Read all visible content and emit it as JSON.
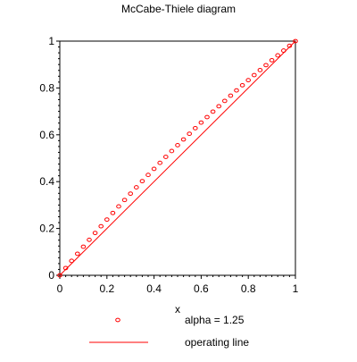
{
  "chart_data": {
    "type": "scatter",
    "title": "McCabe-Thiele diagram",
    "xlabel": "x",
    "ylabel": "",
    "xlim": [
      0,
      1
    ],
    "ylim": [
      0,
      1
    ],
    "grid": false,
    "legend_position": "bottom",
    "x_ticks": [
      "0",
      "0.2",
      "0.4",
      "0.6",
      "0.8",
      "1"
    ],
    "y_ticks": [
      "0",
      "0.2",
      "0.4",
      "0.6",
      "0.8",
      "1"
    ],
    "series": [
      {
        "name": "alpha = 1.25",
        "style": "circles",
        "color": "#ff0000",
        "alpha": 1.25,
        "x": [
          0,
          0.025,
          0.05,
          0.075,
          0.1,
          0.125,
          0.15,
          0.175,
          0.2,
          0.225,
          0.25,
          0.275,
          0.3,
          0.325,
          0.35,
          0.375,
          0.4,
          0.425,
          0.45,
          0.475,
          0.5,
          0.525,
          0.55,
          0.575,
          0.6,
          0.625,
          0.65,
          0.675,
          0.7,
          0.725,
          0.75,
          0.775,
          0.8,
          0.825,
          0.85,
          0.875,
          0.9,
          0.925,
          0.95,
          0.975,
          1
        ],
        "y": [
          0,
          0.0311,
          0.0617,
          0.092,
          0.122,
          0.1515,
          0.1807,
          0.2095,
          0.2381,
          0.2662,
          0.2941,
          0.3216,
          0.3488,
          0.3757,
          0.4023,
          0.4286,
          0.4545,
          0.4802,
          0.5056,
          0.5307,
          0.5556,
          0.5801,
          0.6044,
          0.6284,
          0.6522,
          0.6757,
          0.6989,
          0.7219,
          0.7447,
          0.7672,
          0.7895,
          0.8115,
          0.8333,
          0.8549,
          0.8763,
          0.8974,
          0.9184,
          0.9391,
          0.9596,
          0.9799,
          1
        ]
      },
      {
        "name": "operating line",
        "style": "line",
        "color": "#ff0000",
        "x": [
          0,
          1
        ],
        "y": [
          0,
          1
        ]
      }
    ]
  }
}
